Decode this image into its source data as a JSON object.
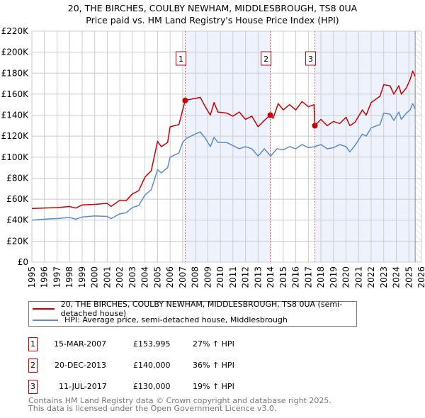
{
  "chart_data": {
    "type": "line",
    "title": "20, THE BIRCHES, COULBY NEWHAM, MIDDLESBROUGH, TS8 0UA",
    "subtitle": "Price paid vs. HM Land Registry's House Price Index (HPI)",
    "xlim": [
      1995,
      2026
    ],
    "ylim": [
      0,
      220000
    ],
    "y_ticks": [
      "£0",
      "£20K",
      "£40K",
      "£60K",
      "£80K",
      "£100K",
      "£120K",
      "£140K",
      "£160K",
      "£180K",
      "£200K",
      "£220K"
    ],
    "x_ticks": [
      "1995",
      "1996",
      "1997",
      "1998",
      "1999",
      "2000",
      "2001",
      "2002",
      "2003",
      "2004",
      "2005",
      "2006",
      "2007",
      "2008",
      "2009",
      "2010",
      "2011",
      "2012",
      "2013",
      "2014",
      "2015",
      "2016",
      "2017",
      "2018",
      "2019",
      "2020",
      "2021",
      "2022",
      "2023",
      "2024",
      "2025",
      "2026"
    ],
    "grid": true,
    "series": [
      {
        "name": "20, THE BIRCHES, COULBY NEWHAM, MIDDLESBROUGH, TS8 0UA (semi-detached house)",
        "color": "#cc0000",
        "x": [
          1995,
          1996,
          1997,
          1998,
          1998.5,
          1999,
          2000,
          2001,
          2001.3,
          2002,
          2002.5,
          2003,
          2003.5,
          2004,
          2004.5,
          2005,
          2005.3,
          2005.8,
          2006,
          2006.7,
          2007,
          2007.2,
          2008,
          2008.4,
          2008.8,
          2009.2,
          2009.5,
          2009.8,
          2010.5,
          2011,
          2011.5,
          2012,
          2012.5,
          2013,
          2013.5,
          2013.97,
          2014.2,
          2014.6,
          2015,
          2015.5,
          2016,
          2016.5,
          2017,
          2017.45,
          2017.52,
          2018,
          2018.5,
          2019,
          2019.5,
          2020,
          2020.3,
          2020.7,
          2021.3,
          2021.6,
          2022,
          2022.7,
          2023,
          2023.5,
          2023.8,
          2024.2,
          2024.4,
          2024.8,
          2025.1,
          2025.3,
          2025.5
        ],
        "y": [
          51000,
          51500,
          52000,
          53000,
          51500,
          54500,
          55000,
          56000,
          53000,
          59000,
          58500,
          65000,
          68000,
          81000,
          87000,
          115000,
          110000,
          114000,
          129000,
          131000,
          145000,
          154000,
          156000,
          157000,
          148000,
          140000,
          152000,
          143000,
          142000,
          139000,
          143000,
          136000,
          139000,
          129000,
          135000,
          140000,
          137000,
          151000,
          145000,
          150000,
          145000,
          153000,
          148000,
          150000,
          130000,
          136000,
          130000,
          134000,
          132000,
          138000,
          130000,
          133000,
          145000,
          140000,
          152000,
          158000,
          169000,
          168000,
          160000,
          168000,
          160000,
          166000,
          174000,
          182000,
          177000
        ]
      },
      {
        "name": "HPI: Average price, semi-detached house, Middlesbrough",
        "color": "#5b8bd0",
        "x": [
          1995,
          1996,
          1997,
          1998,
          1998.5,
          1999,
          2000,
          2001,
          2001.3,
          2002,
          2002.5,
          2003,
          2003.5,
          2004,
          2004.5,
          2005,
          2005.3,
          2005.8,
          2006,
          2006.7,
          2007,
          2007.3,
          2008,
          2008.4,
          2008.8,
          2009.2,
          2009.5,
          2009.8,
          2010.5,
          2011,
          2011.5,
          2012,
          2012.5,
          2013,
          2013.5,
          2014,
          2014.5,
          2015,
          2015.5,
          2016,
          2016.5,
          2017,
          2017.5,
          2018,
          2018.5,
          2019,
          2019.5,
          2020,
          2020.3,
          2020.7,
          2021.3,
          2021.6,
          2022,
          2022.7,
          2023,
          2023.5,
          2023.8,
          2024.2,
          2024.4,
          2024.8,
          2025.1,
          2025.3,
          2025.5
        ],
        "y": [
          40000,
          41000,
          41500,
          42500,
          41000,
          43000,
          44000,
          43500,
          41500,
          46000,
          47000,
          52000,
          54000,
          64000,
          69000,
          88000,
          85000,
          90000,
          100000,
          104000,
          114000,
          118000,
          122000,
          124000,
          118000,
          110000,
          119000,
          114000,
          114000,
          111000,
          108000,
          110000,
          108000,
          101000,
          108000,
          101000,
          108000,
          107000,
          110000,
          108000,
          112000,
          109000,
          110000,
          112000,
          108000,
          109000,
          112000,
          110000,
          105000,
          111000,
          122000,
          120000,
          128000,
          131000,
          142000,
          141000,
          135000,
          143000,
          136000,
          142000,
          145000,
          151000,
          146000
        ]
      }
    ],
    "sales": [
      {
        "label": "1",
        "x": 2007.2,
        "y": 153995,
        "date": "15-MAR-2007",
        "price": "£153,995",
        "hpi": "27% ↑ HPI"
      },
      {
        "label": "2",
        "x": 2013.97,
        "y": 140000,
        "date": "20-DEC-2013",
        "price": "£140,000",
        "hpi": "36% ↑ HPI"
      },
      {
        "label": "3",
        "x": 2017.52,
        "y": 130000,
        "date": "11-JUL-2017",
        "price": "£130,000",
        "hpi": "19% ↑ HPI"
      }
    ],
    "data_end": 2025.5
  },
  "footer": {
    "line1": "Contains HM Land Registry data © Crown copyright and database right 2025.",
    "line2": "This data is licensed under the Open Government Licence v3.0."
  }
}
